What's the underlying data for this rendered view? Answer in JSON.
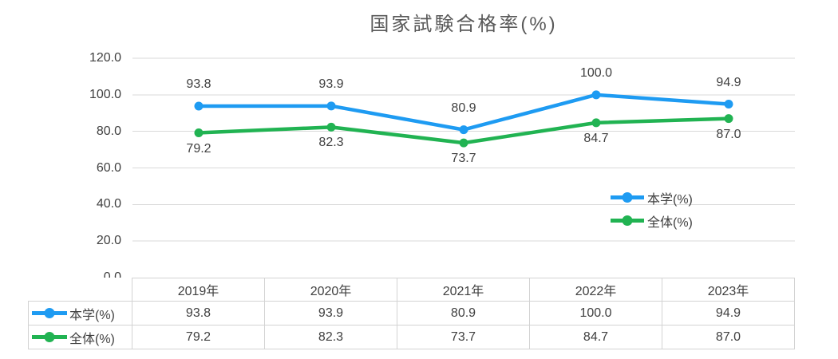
{
  "chart_data": {
    "type": "line",
    "title": "国家試験合格率(%)",
    "categories": [
      "2019年",
      "2020年",
      "2021年",
      "2022年",
      "2023年"
    ],
    "series": [
      {
        "name": "本学(%)",
        "color": "#1E9BF2",
        "values": [
          93.8,
          93.9,
          80.9,
          100.0,
          94.9
        ],
        "label_position": "above"
      },
      {
        "name": "全体(%)",
        "color": "#21B352",
        "values": [
          79.2,
          82.3,
          73.7,
          84.7,
          87.0
        ],
        "label_position": "below"
      }
    ],
    "y_axis": {
      "min": 0,
      "max": 120,
      "step": 20,
      "tick_labels": [
        "0.0",
        "20.0",
        "40.0",
        "60.0",
        "80.0",
        "100.0",
        "120.0"
      ]
    },
    "grid": true,
    "legend_position": "inside-right",
    "colors": {
      "grid": "#D9D9D9",
      "table_border": "#D3D3D3",
      "text": "#404040",
      "title": "#595959"
    }
  },
  "table": {
    "columns": [
      "2019年",
      "2020年",
      "2021年",
      "2022年",
      "2023年"
    ],
    "rows": [
      {
        "label": "本学(%)",
        "color": "#1E9BF2",
        "values": [
          "93.8",
          "93.9",
          "80.9",
          "100.0",
          "94.9"
        ]
      },
      {
        "label": "全体(%)",
        "color": "#21B352",
        "values": [
          "79.2",
          "82.3",
          "73.7",
          "84.7",
          "87.0"
        ]
      }
    ]
  }
}
